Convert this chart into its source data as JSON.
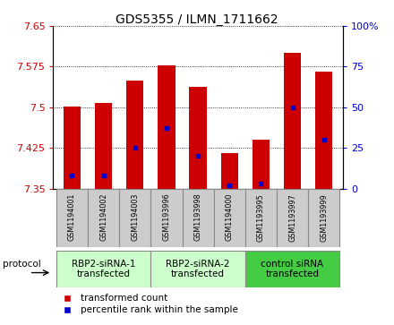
{
  "title": "GDS5355 / ILMN_1711662",
  "samples": [
    "GSM1194001",
    "GSM1194002",
    "GSM1194003",
    "GSM1193996",
    "GSM1193998",
    "GSM1194000",
    "GSM1193995",
    "GSM1193997",
    "GSM1193999"
  ],
  "transformed_counts": [
    7.502,
    7.508,
    7.55,
    7.578,
    7.537,
    7.415,
    7.44,
    7.6,
    7.565
  ],
  "percentile_ranks": [
    8,
    8,
    25,
    37,
    20,
    2,
    3,
    50,
    30
  ],
  "ylim_left": [
    7.35,
    7.65
  ],
  "ylim_right": [
    0,
    100
  ],
  "yticks_left": [
    7.35,
    7.425,
    7.5,
    7.575,
    7.65
  ],
  "yticks_right": [
    0,
    25,
    50,
    75,
    100
  ],
  "bar_color": "#cc0000",
  "dot_color": "#0000cc",
  "groups": [
    {
      "label": "RBP2-siRNA-1\ntransfected",
      "start": 0,
      "end": 3,
      "color": "#ccffcc"
    },
    {
      "label": "RBP2-siRNA-2\ntransfected",
      "start": 3,
      "end": 6,
      "color": "#ccffcc"
    },
    {
      "label": "control siRNA\ntransfected",
      "start": 6,
      "end": 9,
      "color": "#44cc44"
    }
  ],
  "protocol_label": "protocol",
  "ylabel_left_color": "#cc0000",
  "ylabel_right_color": "#0000cc",
  "title_fontsize": 10,
  "bar_width": 0.55,
  "sample_box_color": "#cccccc",
  "sample_box_edge": "#888888"
}
